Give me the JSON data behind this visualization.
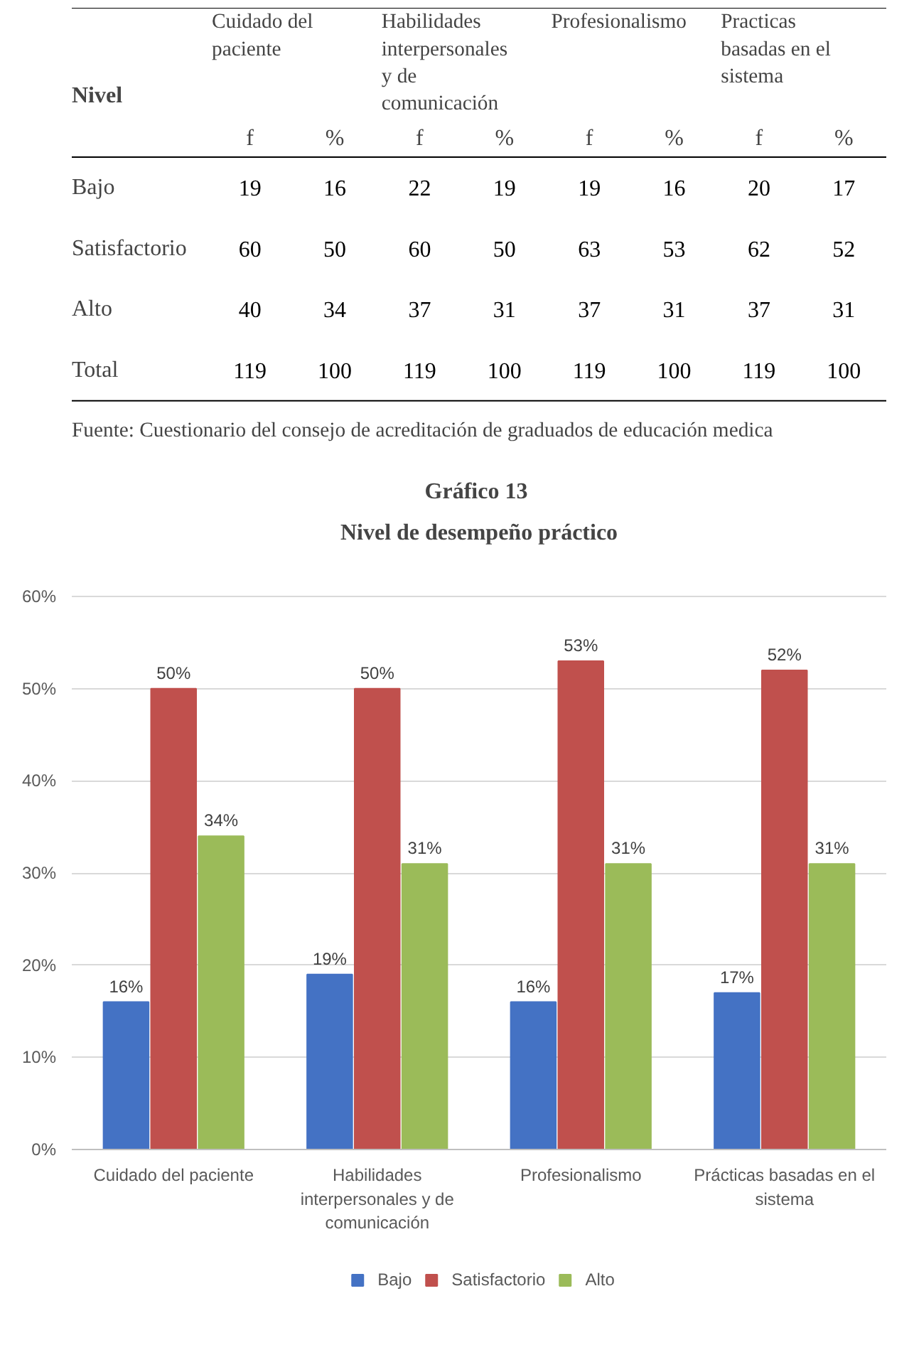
{
  "chart_data": [
    {
      "type": "heatmap",
      "ylabel": "Nivel",
      "categories": [
        "f",
        "%",
        "f",
        "%",
        "f",
        "%",
        "f",
        "%"
      ],
      "y_categories": [
        "Bajo",
        "Satisfactorio",
        "Alto",
        "Total"
      ],
      "cells": [
        [
          19,
          16,
          22,
          19,
          19,
          16,
          20,
          17
        ],
        [
          60,
          50,
          60,
          50,
          63,
          53,
          62,
          52
        ],
        [
          40,
          34,
          37,
          31,
          37,
          31,
          37,
          31
        ],
        [
          119,
          100,
          119,
          100,
          119,
          100,
          119,
          100
        ]
      ],
      "data_labels": true,
      "annotations": [
        "Cuidado del paciente",
        "Habilidades interpersonales y de comunicación",
        "Profesionalismo",
        "Practicas basadas en el sistema",
        "Fuente: Cuestionario del consejo de acreditación de graduados de educación medica"
      ]
    },
    {
      "type": "bar",
      "title": "Gráfico  13",
      "subtitle": "Nivel de desempeño práctico",
      "categories": [
        "Cuidado del paciente",
        "Habilidades interpersonales y de comunicación",
        "Profesionalismo",
        "Prácticas basadas en el sistema"
      ],
      "series": [
        {
          "name": "Bajo",
          "color": "#4472c4",
          "values": [
            16,
            19,
            16,
            17
          ],
          "value_labels": [
            "16%",
            "19%",
            "16%",
            "17%"
          ]
        },
        {
          "name": "Satisfactorio",
          "color": "#c0504d",
          "values": [
            50,
            50,
            53,
            52
          ],
          "value_labels": [
            "50%",
            "50%",
            "53%",
            "52%"
          ]
        },
        {
          "name": "Alto",
          "color": "#9bbb59",
          "values": [
            34,
            31,
            31,
            31
          ],
          "value_labels": [
            "34%",
            "31%",
            "31%",
            "31%"
          ]
        }
      ],
      "ylim": [
        0,
        60
      ],
      "yticks": [
        {
          "value": 0,
          "label": "0%"
        },
        {
          "value": 10,
          "label": "10%"
        },
        {
          "value": 20,
          "label": "20%"
        },
        {
          "value": 30,
          "label": "30%"
        },
        {
          "value": 40,
          "label": "40%"
        },
        {
          "value": 50,
          "label": "50%"
        },
        {
          "value": 60,
          "label": "60%"
        }
      ],
      "grid": "y",
      "legend": "bottom"
    }
  ]
}
